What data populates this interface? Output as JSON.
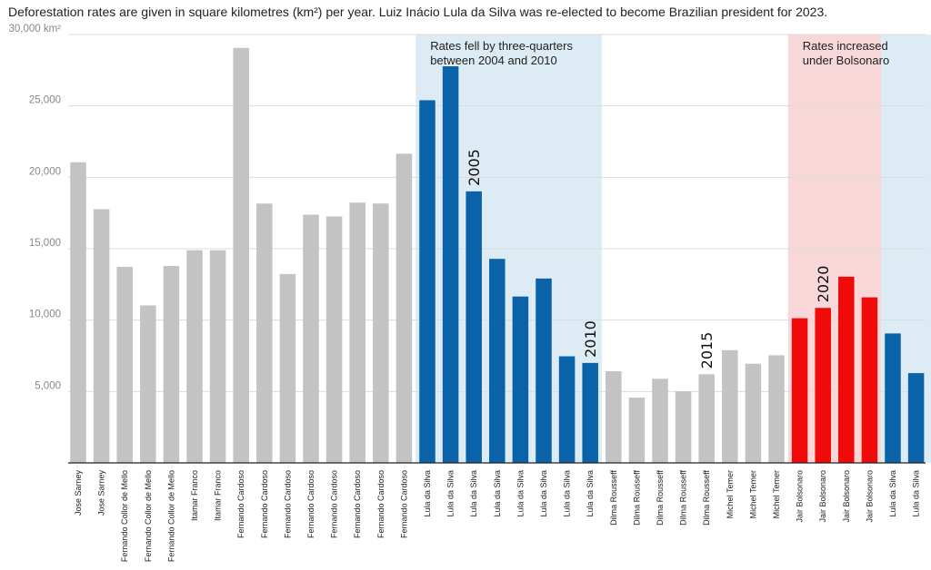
{
  "subtitle": "Deforestation rates are given in square kilometres (km²) per year. Luiz Inácio Lula da Silva was re-elected to become Brazilian president for 2023.",
  "colors": {
    "gray": "#c3c3c3",
    "lula": "#0a62a8",
    "bolsonaro": "#f00a0a",
    "blue_band": "#dcebf4",
    "red_band": "#f7d7d8",
    "grid": "#dddddd",
    "axis": "#222222"
  },
  "chart_data": {
    "type": "bar",
    "y_tick_labels": [
      "30,000 km²",
      "25,000",
      "20,000",
      "15,000",
      "10,000",
      "5,000"
    ],
    "y_ticks": [
      30000,
      25000,
      20000,
      15000,
      10000,
      5000
    ],
    "ylim": [
      0,
      30000
    ],
    "grid": true,
    "categories": [
      "Jose Sarney",
      "Jose Sarney",
      "Fernando Collor de Mello",
      "Fernando Collor de Mello",
      "Fernando Collor de Mello",
      "Itamar Franco",
      "Itamar Franco",
      "Fernando Cardoso",
      "Fernando Cardoso",
      "Fernando Cardoso",
      "Fernando Cardoso",
      "Fernando Cardoso",
      "Fernando Cardoso",
      "Fernando Cardoso",
      "Fernando Cardoso",
      "Lula da Silva",
      "Lula da Silva",
      "Lula da Silva",
      "Lula da Silva",
      "Lula da Silva",
      "Lula da Silva",
      "Lula da Silva",
      "Lula da Silva",
      "Dilma Rousseff",
      "Dilma Rousseff",
      "Dilma Rousseff",
      "Dilma Rousseff",
      "Dilma Rousseff",
      "Michel Temer",
      "Michel Temer",
      "Michel Temer",
      "Jair Bolsonaro",
      "Jair Bolsonaro",
      "Jair Bolsonaro",
      "Jair Bolsonaro",
      "Lula da Silva",
      "Lula da Silva"
    ],
    "values": [
      21050,
      17770,
      13730,
      11030,
      13786,
      14896,
      14896,
      29059,
      18161,
      13227,
      17383,
      17259,
      18226,
      18165,
      21651,
      25396,
      27772,
      19014,
      14286,
      11651,
      12911,
      7464,
      7000,
      6418,
      4571,
      5891,
      5012,
      6207,
      7893,
      6947,
      7536,
      10129,
      10851,
      13038,
      11594,
      9064,
      6288
    ],
    "groups": [
      "gray",
      "gray",
      "gray",
      "gray",
      "gray",
      "gray",
      "gray",
      "gray",
      "gray",
      "gray",
      "gray",
      "gray",
      "gray",
      "gray",
      "gray",
      "lula",
      "lula",
      "lula",
      "lula",
      "lula",
      "lula",
      "lula",
      "lula",
      "gray",
      "gray",
      "gray",
      "gray",
      "gray",
      "gray",
      "gray",
      "gray",
      "bolsonaro",
      "bolsonaro",
      "bolsonaro",
      "bolsonaro",
      "lula",
      "lula"
    ],
    "bands": [
      {
        "color": "blue",
        "from_index": 15,
        "to_index": 22,
        "label_lines": [
          "Rates fell by three-quarters",
          "between 2004 and 2010"
        ]
      },
      {
        "color": "red",
        "from_index": 31,
        "to_index": 34,
        "label_lines": [
          "Rates increased",
          "under Bolsonaro"
        ]
      },
      {
        "color": "blue",
        "from_index": 35,
        "to_index": 36,
        "label_lines": []
      }
    ],
    "year_labels": [
      {
        "index": 17,
        "text": "2005"
      },
      {
        "index": 22,
        "text": "2010"
      },
      {
        "index": 27,
        "text": "2015"
      },
      {
        "index": 32,
        "text": "2020"
      }
    ]
  }
}
